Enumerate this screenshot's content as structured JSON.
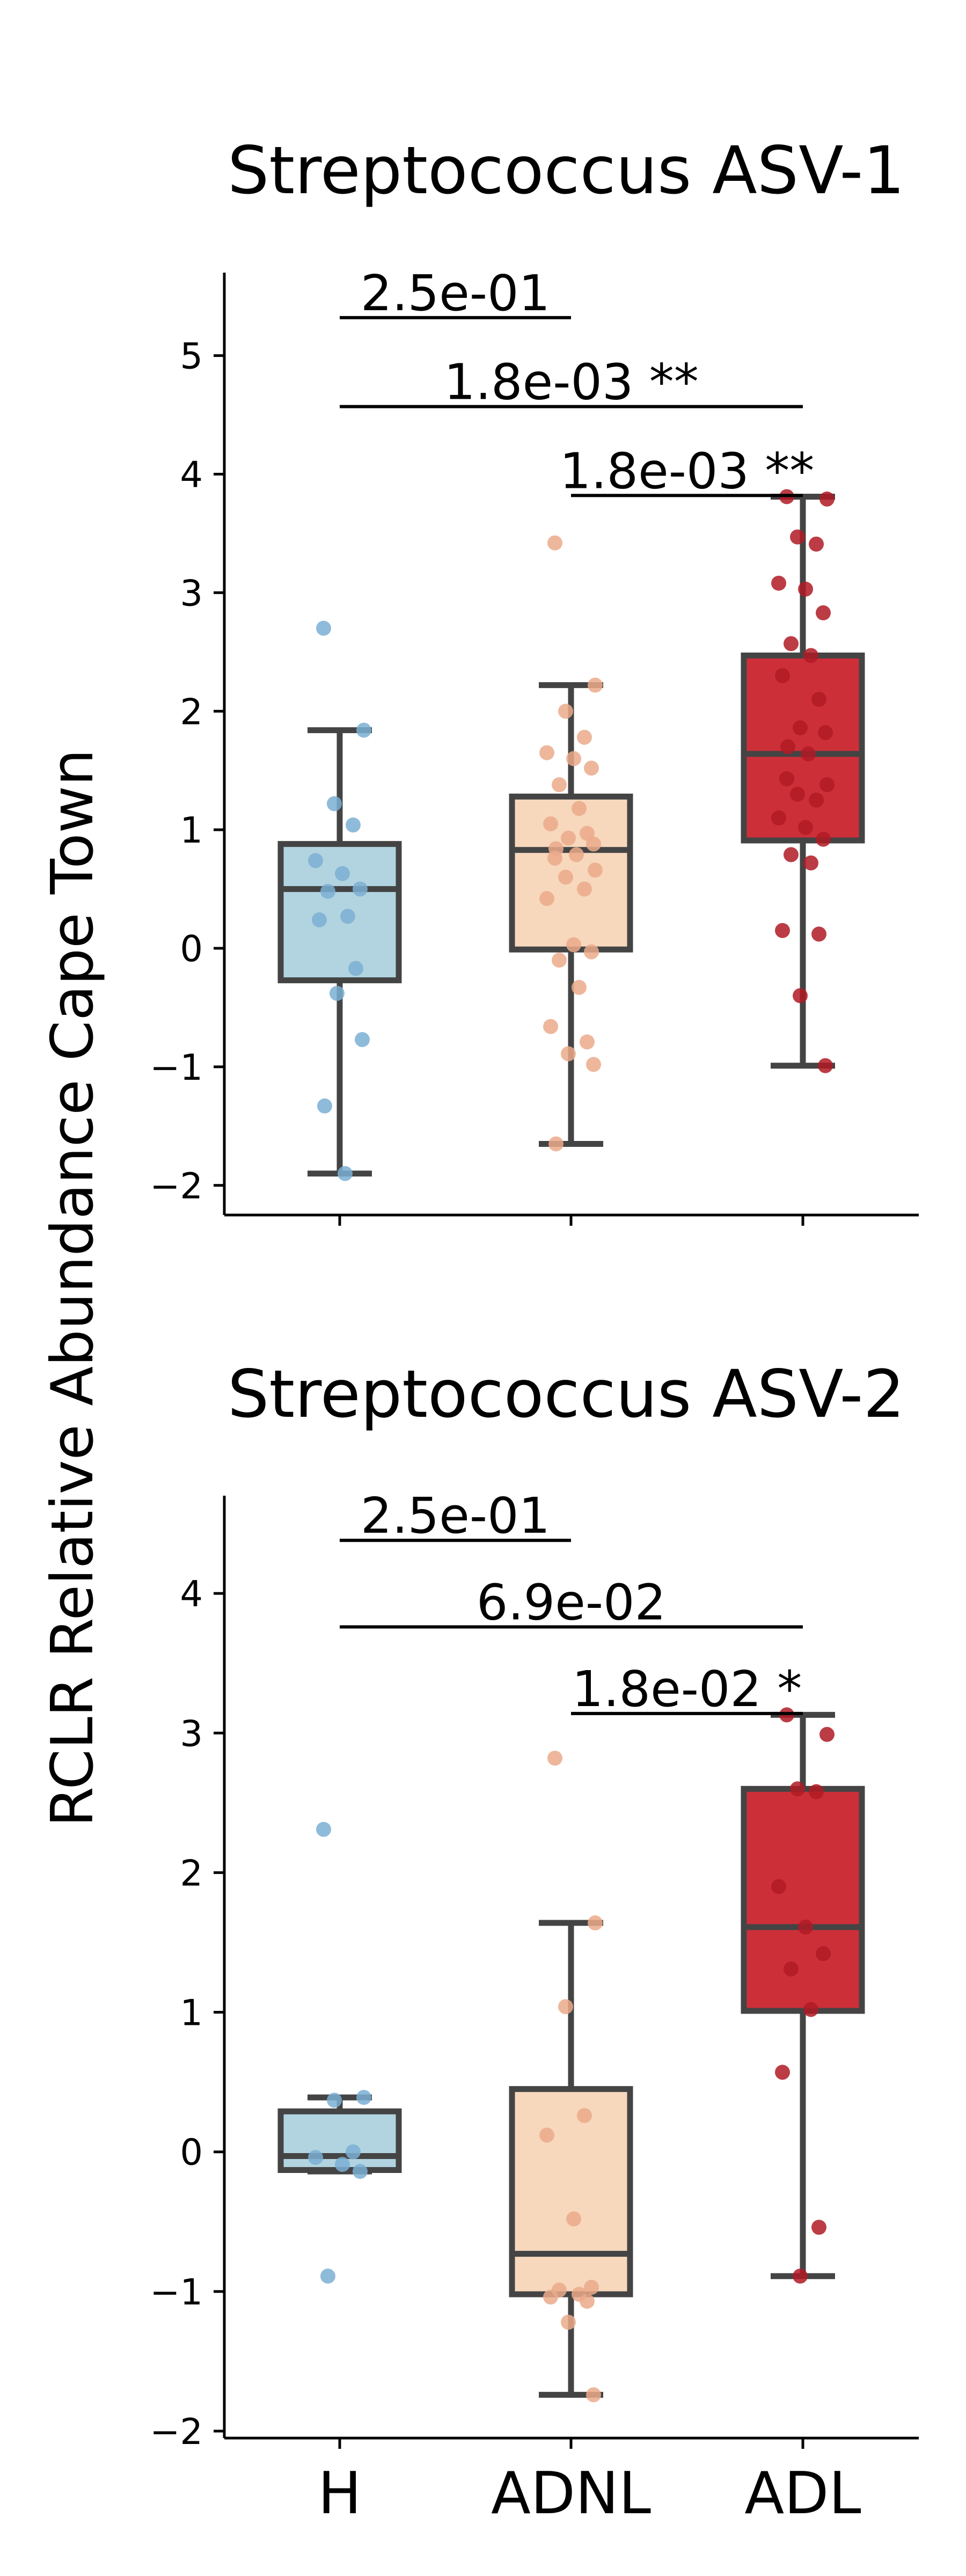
{
  "colors": {
    "H": {
      "box": "#b2d4e0",
      "point": "#7bafd4"
    },
    "ADNL": {
      "box": "#f7d8bd",
      "point": "#ebaa8b"
    },
    "ADL": {
      "box": "#cd2f39",
      "point": "#b01a24"
    }
  },
  "chart_data": [
    {
      "type": "box",
      "title": "Streptococcus ASV-1",
      "ylabel": "RCLR Relative Abundance Cape Town",
      "categories": [
        "H",
        "ADNL",
        "ADL"
      ],
      "ylim": [
        -2.25,
        5.7
      ],
      "yticks": [
        -2,
        -1,
        0,
        1,
        2,
        3,
        4,
        5
      ],
      "ytick_labels": [
        "−2",
        "−1",
        "0",
        "1",
        "2",
        "3",
        "4",
        "5"
      ],
      "show_xtick_labels": false,
      "boxes": [
        {
          "category": "H",
          "whislo": -1.9,
          "q1": -0.27,
          "median": 0.5,
          "q3": 0.88,
          "whishi": 1.84
        },
        {
          "category": "ADNL",
          "whislo": -1.65,
          "q1": -0.01,
          "median": 0.83,
          "q3": 1.28,
          "whishi": 2.22
        },
        {
          "category": "ADL",
          "whislo": -0.99,
          "q1": 0.91,
          "median": 1.64,
          "q3": 2.47,
          "whishi": 3.81
        }
      ],
      "points": [
        [
          2.7,
          1.84,
          1.22,
          1.04,
          0.74,
          0.63,
          0.5,
          0.48,
          0.27,
          0.24,
          -0.17,
          -0.38,
          -0.77,
          -1.33,
          -1.9
        ],
        [
          3.42,
          2.22,
          2.0,
          1.78,
          1.65,
          1.6,
          1.52,
          1.38,
          1.18,
          1.05,
          0.97,
          0.93,
          0.88,
          0.84,
          0.79,
          0.76,
          0.66,
          0.6,
          0.5,
          0.42,
          0.03,
          -0.03,
          -0.1,
          -0.33,
          -0.66,
          -0.79,
          -0.89,
          -0.98,
          -1.65
        ],
        [
          3.81,
          3.79,
          3.47,
          3.41,
          3.08,
          3.03,
          2.83,
          2.57,
          2.47,
          2.3,
          2.1,
          1.86,
          1.82,
          1.7,
          1.64,
          1.43,
          1.38,
          1.3,
          1.25,
          1.1,
          1.02,
          0.92,
          0.79,
          0.72,
          0.15,
          0.12,
          -0.4,
          -0.99
        ]
      ],
      "annotations": [
        {
          "from": "H",
          "to": "ADNL",
          "y": 5.32,
          "label": "2.5e-01"
        },
        {
          "from": "H",
          "to": "ADL",
          "y": 4.57,
          "label": "1.8e-03 **"
        },
        {
          "from": "ADNL",
          "to": "ADL",
          "y": 3.82,
          "label": "1.8e-03 **"
        }
      ]
    },
    {
      "type": "box",
      "title": "Streptococcus ASV-2",
      "ylabel": "RCLR Relative Abundance Cape Town",
      "categories": [
        "H",
        "ADNL",
        "ADL"
      ],
      "ylim": [
        -2.05,
        4.7
      ],
      "yticks": [
        -2,
        -1,
        0,
        1,
        2,
        3,
        4
      ],
      "ytick_labels": [
        "−2",
        "−1",
        "0",
        "1",
        "2",
        "3",
        "4"
      ],
      "show_xtick_labels": true,
      "boxes": [
        {
          "category": "H",
          "whislo": -0.14,
          "q1": -0.13,
          "median": -0.03,
          "q3": 0.29,
          "whishi": 0.39
        },
        {
          "category": "ADNL",
          "whislo": -1.74,
          "q1": -1.02,
          "median": -0.73,
          "q3": 0.45,
          "whishi": 1.64
        },
        {
          "category": "ADL",
          "whislo": -0.89,
          "q1": 1.01,
          "median": 1.61,
          "q3": 2.6,
          "whishi": 3.13
        }
      ],
      "points": [
        [
          2.31,
          0.39,
          0.37,
          0.0,
          -0.04,
          -0.09,
          -0.14,
          -0.89
        ],
        [
          2.82,
          1.64,
          1.04,
          0.26,
          0.12,
          -0.48,
          -0.97,
          -0.99,
          -1.02,
          -1.04,
          -1.07,
          -1.22,
          -1.74
        ],
        [
          3.13,
          2.99,
          2.6,
          2.58,
          1.9,
          1.61,
          1.42,
          1.31,
          1.02,
          0.57,
          -0.54,
          -0.89
        ]
      ],
      "annotations": [
        {
          "from": "H",
          "to": "ADNL",
          "y": 4.38,
          "label": "2.5e-01"
        },
        {
          "from": "H",
          "to": "ADL",
          "y": 3.76,
          "label": "6.9e-02"
        },
        {
          "from": "ADNL",
          "to": "ADL",
          "y": 3.14,
          "label": "1.8e-02 *"
        }
      ]
    }
  ]
}
